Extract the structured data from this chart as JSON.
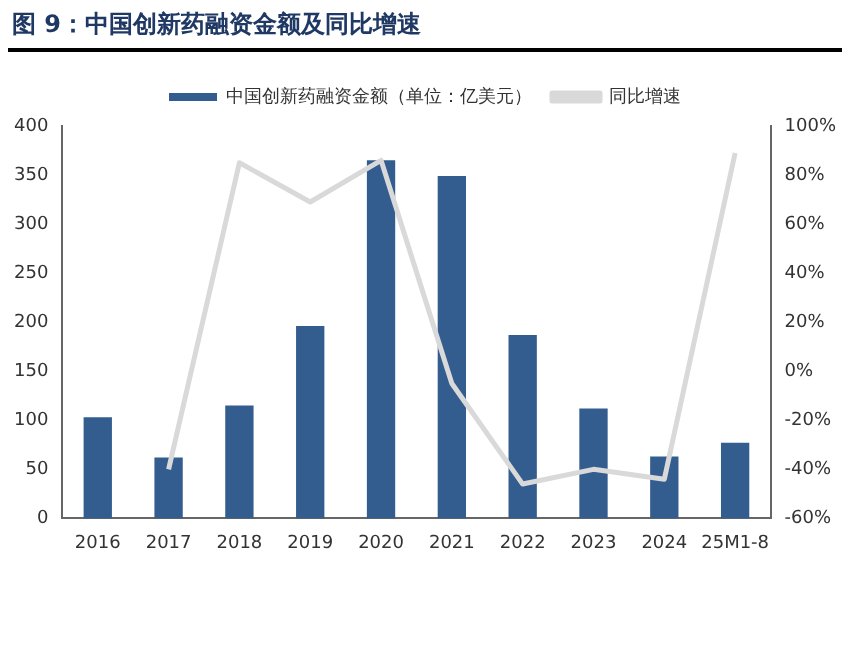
{
  "chart_data": {
    "type": "bar",
    "title": "图 9：中国创新药融资金额及同比增速",
    "categories": [
      "2016",
      "2017",
      "2018",
      "2019",
      "2020",
      "2021",
      "2022",
      "2023",
      "2024",
      "25M1-8"
    ],
    "series": [
      {
        "name": "中国创新药融资金额（单位：亿美元）",
        "color": "#335c8f",
        "values": [
          103,
          62,
          115,
          196,
          365,
          349,
          187,
          112,
          63,
          77
        ]
      },
      {
        "name": "同比增速",
        "type": "line",
        "axis": "y2",
        "color": "#d9d9d9",
        "values": [
          null,
          -40,
          85,
          69,
          86,
          -5,
          -46,
          -40,
          -44,
          89
        ]
      }
    ],
    "ylim": [
      0,
      400
    ],
    "yticks": [
      0,
      50,
      100,
      150,
      200,
      250,
      300,
      350,
      400
    ],
    "y2lim": [
      -60,
      100
    ],
    "y2ticks": [
      {
        "value": -60,
        "label": "-60%"
      },
      {
        "value": -40,
        "label": "-40%"
      },
      {
        "value": -20,
        "label": "-20%"
      },
      {
        "value": 0,
        "label": "0%"
      },
      {
        "value": 20,
        "label": "20%"
      },
      {
        "value": 40,
        "label": "40%"
      },
      {
        "value": 60,
        "label": "60%"
      },
      {
        "value": 80,
        "label": "80%"
      },
      {
        "value": 100,
        "label": "100%"
      }
    ],
    "legend": "top",
    "grid": false,
    "marker": "none"
  }
}
